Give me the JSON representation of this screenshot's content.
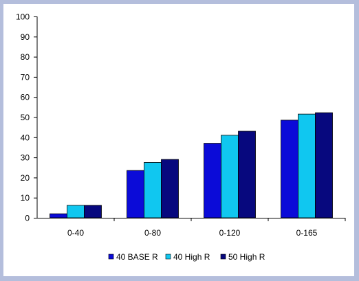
{
  "chart_data": {
    "type": "bar",
    "title": "",
    "xlabel": "",
    "ylabel": "",
    "categories": [
      "0-40",
      "0-80",
      "0-120",
      "0-165"
    ],
    "ylim": [
      0,
      100
    ],
    "yticks": [
      0,
      10,
      20,
      30,
      40,
      50,
      60,
      70,
      80,
      90,
      100
    ],
    "grid": false,
    "legend_position": "bottom",
    "series": [
      {
        "name": "40 BASE R",
        "color": "#0b0bd8",
        "values": [
          2,
          23.5,
          37,
          48.5
        ]
      },
      {
        "name": "40 High R",
        "color": "#10c7f0",
        "values": [
          6.2,
          27.5,
          41,
          51.5
        ]
      },
      {
        "name": "50 High R",
        "color": "#07087e",
        "values": [
          6.2,
          29,
          43,
          52.2
        ]
      }
    ]
  }
}
